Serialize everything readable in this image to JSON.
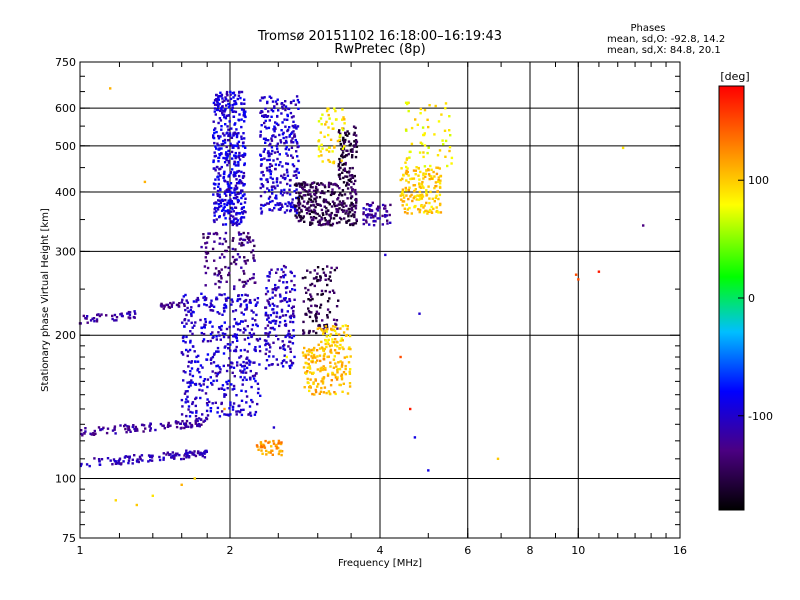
{
  "chart_data": {
    "type": "scatter",
    "title": "Tromsø 20151102 16:18:00–16:19:43",
    "subtitle": "RwPretec (8p)",
    "xlabel": "Frequency [MHz]",
    "ylabel": "Stationary phase Virtual Height [km]",
    "x_scale": "log",
    "y_scale": "log",
    "xlim": [
      1,
      16
    ],
    "ylim": [
      75,
      750
    ],
    "x_ticks": [
      1,
      2,
      4,
      6,
      8,
      10,
      16
    ],
    "y_ticks": [
      75,
      100,
      200,
      300,
      400,
      500,
      600,
      750
    ],
    "grid": true,
    "stats": {
      "heading": "Phases",
      "line1": "mean, sd,O: -92.8, 14.2",
      "line2": "mean, sd,X:  84.8, 20.1"
    },
    "colorbar": {
      "label": "[deg]",
      "min": -180,
      "max": 180,
      "ticks": [
        100,
        0,
        -100
      ],
      "colormap": [
        "#000000",
        "#4b0082",
        "#0000ff",
        "#00bfff",
        "#00ff00",
        "#ffff00",
        "#ff7f00",
        "#ff0000"
      ]
    },
    "series": [
      {
        "type": "trace",
        "f": [
          1.0,
          1.2,
          1.4,
          1.6,
          1.8
        ],
        "h": [
          108,
          109,
          111,
          112,
          113
        ],
        "phase": -110,
        "n": 120
      },
      {
        "type": "trace",
        "f": [
          1.0,
          1.2,
          1.4,
          1.6,
          1.8
        ],
        "h": [
          125,
          127,
          128,
          130,
          132
        ],
        "phase": -120,
        "n": 110
      },
      {
        "type": "trace",
        "f": [
          1.0,
          1.1,
          1.25,
          1.3
        ],
        "h": [
          216,
          218,
          220,
          222
        ],
        "phase": -115,
        "n": 40
      },
      {
        "type": "trace",
        "f": [
          1.45,
          1.55,
          1.65
        ],
        "h": [
          230,
          232,
          234
        ],
        "phase": -125,
        "n": 25
      },
      {
        "type": "cloud",
        "f": [
          1.6,
          2.3
        ],
        "h": [
          135,
          245
        ],
        "phase": -100,
        "n": 450
      },
      {
        "type": "cloud",
        "f": [
          1.75,
          2.25
        ],
        "h": [
          250,
          330
        ],
        "phase": -130,
        "n": 120
      },
      {
        "type": "cloud",
        "f": [
          1.85,
          2.15
        ],
        "h": [
          340,
          650
        ],
        "phase": -95,
        "n": 450
      },
      {
        "type": "cloud",
        "f": [
          2.3,
          2.75
        ],
        "h": [
          360,
          640
        ],
        "phase": -100,
        "n": 300
      },
      {
        "type": "cloud",
        "f": [
          2.35,
          2.7
        ],
        "h": [
          170,
          280
        ],
        "phase": -105,
        "n": 180
      },
      {
        "type": "cloud",
        "f": [
          2.7,
          3.6
        ],
        "h": [
          340,
          420
        ],
        "phase": -150,
        "n": 320
      },
      {
        "type": "cloud",
        "f": [
          3.3,
          3.6
        ],
        "h": [
          420,
          550
        ],
        "phase": -155,
        "n": 100
      },
      {
        "type": "cloud",
        "f": [
          2.8,
          3.3
        ],
        "h": [
          200,
          280
        ],
        "phase": -150,
        "n": 110
      },
      {
        "type": "cloud",
        "f": [
          2.8,
          3.5
        ],
        "h": [
          150,
          190
        ],
        "phase": 105,
        "n": 170
      },
      {
        "type": "cloud",
        "f": [
          3.0,
          3.5
        ],
        "h": [
          190,
          210
        ],
        "phase": 95,
        "n": 50
      },
      {
        "type": "cloud",
        "f": [
          2.25,
          2.55
        ],
        "h": [
          112,
          120
        ],
        "phase": 120,
        "n": 45
      },
      {
        "type": "cloud",
        "f": [
          4.4,
          5.3
        ],
        "h": [
          360,
          450
        ],
        "phase": 100,
        "n": 160
      },
      {
        "type": "cloud",
        "f": [
          4.5,
          5.6
        ],
        "h": [
          450,
          620
        ],
        "phase": 85,
        "n": 60
      },
      {
        "type": "cloud",
        "f": [
          3.0,
          3.4
        ],
        "h": [
          460,
          600
        ],
        "phase": 90,
        "n": 60
      },
      {
        "type": "cloud",
        "f": [
          3.7,
          4.2
        ],
        "h": [
          340,
          380
        ],
        "phase": -120,
        "n": 60
      },
      {
        "type": "scatter",
        "f": [
          1.15,
          1.35,
          1.4,
          1.7,
          1.95,
          2.45,
          2.6,
          4.1,
          4.4,
          4.6,
          4.7,
          4.8,
          5.0,
          6.9,
          9.9,
          10.0,
          11.0,
          12.3,
          13.5,
          1.18,
          1.3,
          1.6
        ],
        "h": [
          660,
          420,
          92,
          100,
          140,
          128,
          180,
          295,
          180,
          140,
          122,
          222,
          104,
          110,
          268,
          262,
          272,
          495,
          340,
          90,
          88,
          97
        ],
        "phases": [
          110,
          110,
          90,
          95,
          120,
          -100,
          80,
          -100,
          150,
          170,
          -90,
          -100,
          -90,
          100,
          150,
          150,
          170,
          90,
          -130,
          95,
          100,
          110
        ]
      }
    ]
  }
}
